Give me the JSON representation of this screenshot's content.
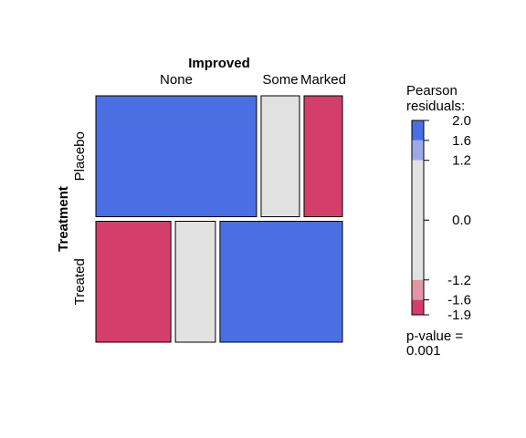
{
  "chart_data": {
    "type": "mosaic",
    "title": "",
    "row_variable": "Treatment",
    "column_variable": "Improved",
    "rows": [
      "Placebo",
      "Treated"
    ],
    "columns": [
      "None",
      "Some",
      "Marked"
    ],
    "row_proportions": [
      0.5,
      0.5
    ],
    "conditional_column_proportions": {
      "Placebo": [
        0.67,
        0.16,
        0.16
      ],
      "Treated": [
        0.3,
        0.16,
        0.49
      ]
    },
    "pearson_residual_shading": {
      "Placebo": [
        "high",
        "none",
        "low"
      ],
      "Treated": [
        "low",
        "none",
        "high"
      ]
    },
    "legend": {
      "title_line1": "Pearson",
      "title_line2": "residuals:",
      "ticks": [
        "2.0",
        "1.6",
        "1.2",
        "0.0",
        "-1.2",
        "-1.6",
        "-1.9"
      ],
      "tick_values": [
        2.0,
        1.6,
        1.2,
        0.0,
        -1.2,
        -1.6,
        -1.9
      ],
      "range": [
        -1.9,
        2.0
      ],
      "bands": [
        {
          "from": 1.6,
          "to": 2.0,
          "level": "high"
        },
        {
          "from": 1.2,
          "to": 1.6,
          "level": "mid-high"
        },
        {
          "from": -1.2,
          "to": 1.2,
          "level": "none"
        },
        {
          "from": -1.6,
          "to": -1.2,
          "level": "mid-low"
        },
        {
          "from": -1.9,
          "to": -1.6,
          "level": "low"
        }
      ]
    },
    "p_value_label": "p-value =",
    "p_value": "0.001",
    "colors": {
      "high": "#4a6fe3",
      "mid-high": "#9ea8e6",
      "none": "#e2e2e2",
      "mid-low": "#e495a5",
      "low": "#d33f6a"
    }
  }
}
